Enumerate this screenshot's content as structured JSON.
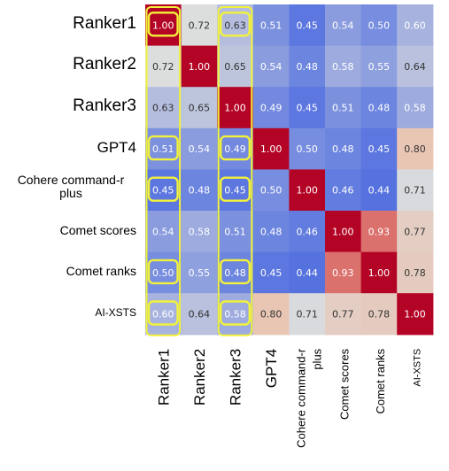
{
  "chart_data": {
    "type": "heatmap",
    "row_labels": [
      "Ranker1",
      "Ranker2",
      "Ranker3",
      "GPT4",
      "Cohere command-r plus",
      "Comet scores",
      "Comet ranks",
      "AI-XSTS"
    ],
    "col_labels": [
      "Ranker1",
      "Ranker2",
      "Ranker3",
      "GPT4",
      "Cohere command-r plus",
      "Comet scores",
      "Comet ranks",
      "AI-XSTS"
    ],
    "values": [
      [
        1.0,
        0.72,
        0.63,
        0.51,
        0.45,
        0.54,
        0.5,
        0.6
      ],
      [
        0.72,
        1.0,
        0.65,
        0.54,
        0.48,
        0.58,
        0.55,
        0.64
      ],
      [
        0.63,
        0.65,
        1.0,
        0.49,
        0.45,
        0.51,
        0.48,
        0.58
      ],
      [
        0.51,
        0.54,
        0.49,
        1.0,
        0.5,
        0.48,
        0.45,
        0.8
      ],
      [
        0.45,
        0.48,
        0.45,
        0.5,
        1.0,
        0.46,
        0.44,
        0.71
      ],
      [
        0.54,
        0.58,
        0.51,
        0.48,
        0.46,
        1.0,
        0.93,
        0.77
      ],
      [
        0.5,
        0.55,
        0.48,
        0.45,
        0.44,
        0.93,
        1.0,
        0.78
      ],
      [
        0.6,
        0.64,
        0.58,
        0.8,
        0.71,
        0.77,
        0.78,
        1.0
      ]
    ],
    "value_labels": [
      [
        "1.00",
        "0.72",
        "0.63",
        "0.51",
        "0.45",
        "0.54",
        "0.50",
        "0.60"
      ],
      [
        "0.72",
        "1.00",
        "0.65",
        "0.54",
        "0.48",
        "0.58",
        "0.55",
        "0.64"
      ],
      [
        "0.63",
        "0.65",
        "1.00",
        "0.49",
        "0.45",
        "0.51",
        "0.48",
        "0.58"
      ],
      [
        "0.51",
        "0.54",
        "0.49",
        "1.00",
        "0.50",
        "0.48",
        "0.45",
        "0.80"
      ],
      [
        "0.45",
        "0.48",
        "0.45",
        "0.50",
        "1.00",
        "0.46",
        "0.44",
        "0.71"
      ],
      [
        "0.54",
        "0.58",
        "0.51",
        "0.48",
        "0.46",
        "1.00",
        "0.93",
        "0.77"
      ],
      [
        "0.50",
        "0.55",
        "0.48",
        "0.45",
        "0.44",
        "0.93",
        "1.00",
        "0.78"
      ],
      [
        "0.60",
        "0.64",
        "0.58",
        "0.80",
        "0.71",
        "0.77",
        "0.78",
        "1.00"
      ]
    ],
    "highlighted_columns": [
      0,
      2
    ],
    "highlighted_cells": [
      [
        0,
        0
      ],
      [
        0,
        2
      ],
      [
        3,
        0
      ],
      [
        3,
        2
      ],
      [
        4,
        0
      ],
      [
        4,
        2
      ],
      [
        6,
        0
      ],
      [
        6,
        2
      ],
      [
        7,
        0
      ],
      [
        7,
        2
      ]
    ],
    "colormap": "coolwarm",
    "value_range": [
      0.44,
      1.0
    ],
    "colors": {
      "low": "#5572df",
      "mid": "#dcdddd",
      "high": "#b40426",
      "highlight": "#f2f23a",
      "cell_text": "#ffffff"
    }
  }
}
